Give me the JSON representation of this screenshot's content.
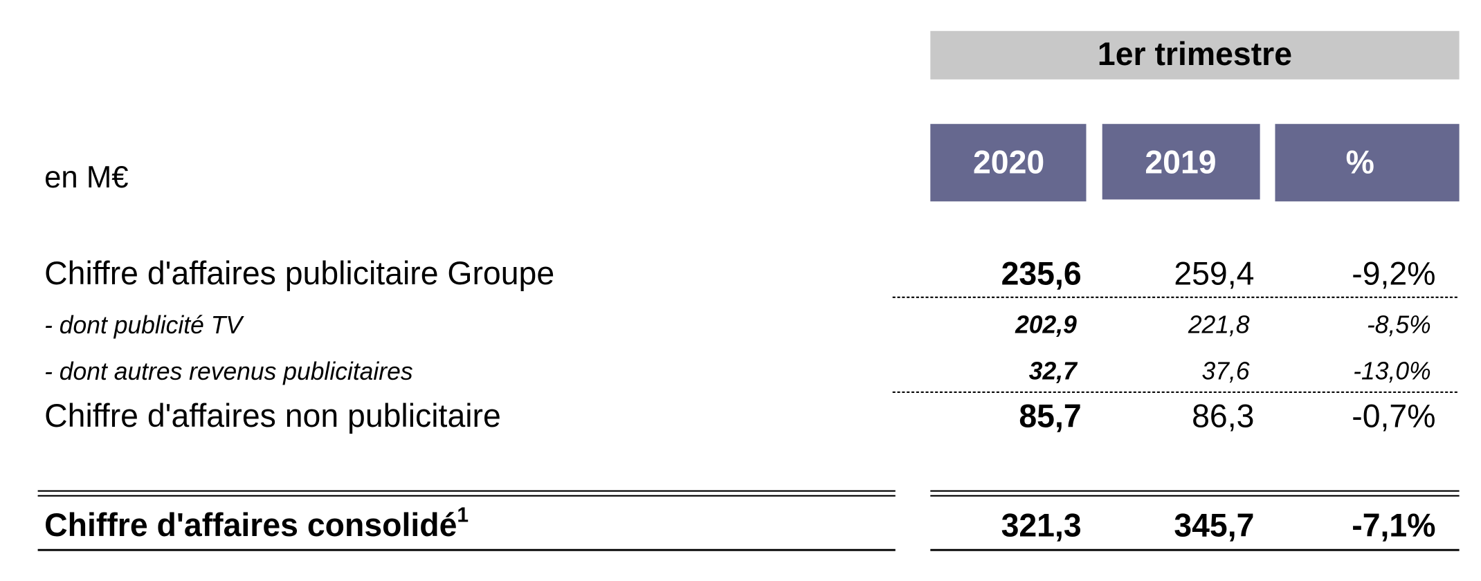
{
  "header": {
    "period": "1er trimestre",
    "unit": "en M€",
    "columns": [
      "2020",
      "2019",
      "%"
    ]
  },
  "table": {
    "rows": [
      {
        "label": "Chiffre d'affaires publicitaire Groupe",
        "values": [
          "235,6",
          "259,4",
          "-9,2%"
        ]
      },
      {
        "label": "- dont publicité TV",
        "values": [
          "202,9",
          "221,8",
          "-8,5%"
        ]
      },
      {
        "label": "- dont autres revenus publicitaires",
        "values": [
          "32,7",
          "37,6",
          "-13,0%"
        ]
      },
      {
        "label": "Chiffre d'affaires non publicitaire",
        "values": [
          "85,7",
          "86,3",
          "-0,7%"
        ]
      },
      {
        "label": "Chiffre d'affaires consolidé",
        "footnote": "1",
        "values": [
          "321,3",
          "345,7",
          "-7,1%"
        ]
      }
    ]
  }
}
